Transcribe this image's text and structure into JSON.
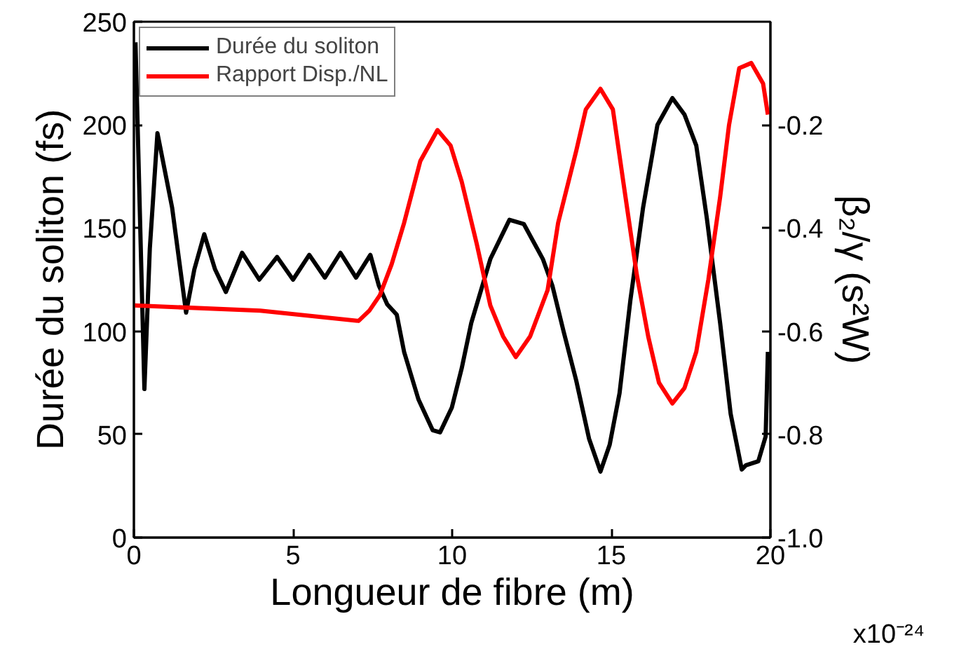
{
  "chart_data": {
    "type": "line",
    "xlabel": "Longueur de fibre (m)",
    "ylabel": "Durée du soliton (fs)",
    "y2label": "β₂/γ (s²W)",
    "xlim": [
      0,
      20
    ],
    "xticks": [
      0,
      5,
      10,
      15,
      20
    ],
    "ylim": [
      0,
      250
    ],
    "yticks": [
      0,
      50,
      100,
      150,
      200,
      250
    ],
    "y2lim": [
      -1.0,
      0.0
    ],
    "y2ticks": [
      {
        "value": -1.0,
        "label": "-1.0"
      },
      -0.8,
      -0.6,
      -0.4,
      -0.2
    ],
    "annotations": [
      "x10⁻²⁴"
    ],
    "grid": false,
    "legend": "top left",
    "line_style": "solid",
    "marker": "none",
    "series": [
      {
        "name": "Durée du soliton",
        "color": "#000000",
        "x": [
          0.05,
          0.33,
          0.5,
          0.74,
          1.2,
          1.64,
          1.9,
          2.21,
          2.55,
          2.89,
          3.4,
          3.94,
          4.5,
          5.0,
          5.51,
          6.0,
          6.49,
          6.98,
          7.43,
          7.7,
          7.96,
          8.26,
          8.49,
          8.94,
          9.39,
          9.62,
          9.99,
          10.3,
          10.6,
          11.2,
          11.8,
          12.25,
          12.85,
          13.15,
          13.5,
          13.9,
          14.3,
          14.66,
          14.95,
          15.26,
          15.6,
          16.0,
          16.45,
          16.92,
          17.3,
          17.67,
          18.0,
          18.42,
          18.75,
          19.1,
          19.23,
          19.62,
          19.85,
          19.92
        ],
        "values": [
          240,
          72,
          140,
          196,
          160,
          109,
          130,
          147,
          130,
          119,
          138,
          125,
          136,
          125,
          137,
          126,
          138,
          126,
          137,
          122,
          113,
          108,
          90,
          67,
          52,
          51,
          63,
          82,
          104,
          135,
          154,
          152,
          135,
          122,
          100,
          76,
          48,
          32,
          45,
          70,
          115,
          160,
          200,
          213,
          205,
          190,
          155,
          104,
          60,
          33,
          35,
          37,
          49,
          90
        ]
      },
      {
        "name": "Rapport Disp./NL",
        "color": "#ff0000",
        "axis": "y2",
        "x": [
          0,
          3.97,
          7.06,
          7.4,
          7.73,
          8.1,
          8.49,
          9.0,
          9.54,
          9.95,
          10.3,
          10.77,
          11.2,
          11.6,
          12.0,
          12.45,
          13.0,
          13.33,
          13.9,
          14.2,
          14.66,
          15.05,
          15.4,
          15.8,
          16.16,
          16.5,
          16.92,
          17.3,
          17.67,
          18.05,
          18.42,
          18.7,
          19.02,
          19.4,
          19.77,
          19.92
        ],
        "values": [
          -0.55,
          -0.56,
          -0.58,
          -0.56,
          -0.53,
          -0.47,
          -0.39,
          -0.27,
          -0.21,
          -0.24,
          -0.31,
          -0.43,
          -0.55,
          -0.61,
          -0.65,
          -0.61,
          -0.52,
          -0.39,
          -0.25,
          -0.17,
          -0.13,
          -0.17,
          -0.32,
          -0.49,
          -0.61,
          -0.7,
          -0.74,
          -0.71,
          -0.64,
          -0.5,
          -0.34,
          -0.2,
          -0.09,
          -0.08,
          -0.12,
          -0.18
        ]
      }
    ]
  }
}
